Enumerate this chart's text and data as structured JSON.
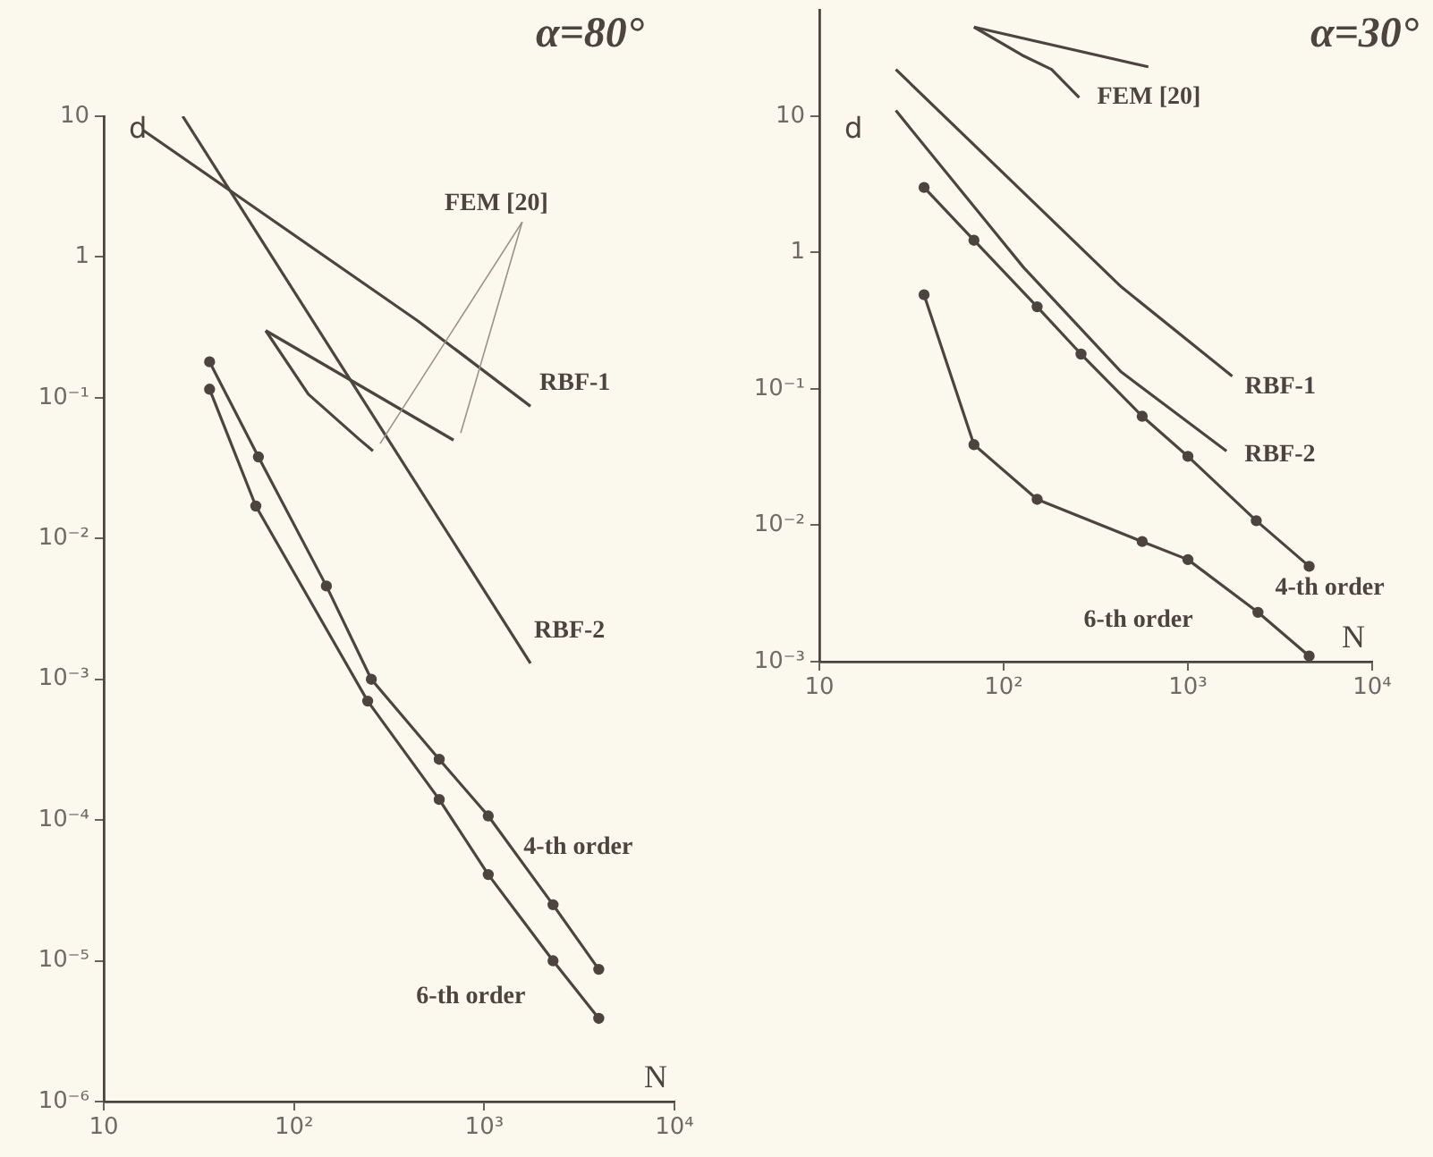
{
  "chart_data": [
    {
      "type": "line",
      "title": "α=80°",
      "xlabel": "N",
      "ylabel": "d",
      "log": "xy",
      "marker": "circle",
      "xlim": [
        10,
        10000
      ],
      "ylim": [
        1e-06,
        10
      ],
      "xticks": [
        {
          "value": 10,
          "label": "10"
        },
        {
          "value": 100,
          "label": "10²"
        },
        {
          "value": 1000,
          "label": "10³"
        },
        {
          "value": 10000,
          "label": "10⁴"
        }
      ],
      "yticks": [
        {
          "value": 1e-06,
          "label": "10⁻⁶"
        },
        {
          "value": 1e-05,
          "label": "10⁻⁵"
        },
        {
          "value": 0.0001,
          "label": "10⁻⁴"
        },
        {
          "value": 0.001,
          "label": "10⁻³"
        },
        {
          "value": 0.01,
          "label": "10⁻²"
        },
        {
          "value": 0.1,
          "label": "10⁻¹"
        },
        {
          "value": 1,
          "label": "1"
        },
        {
          "value": 10,
          "label": "10"
        }
      ],
      "series": [
        {
          "name": "RBF-1",
          "color": "#4d4440",
          "marker": "none",
          "x": [
            16,
            450,
            1750
          ],
          "values": [
            8,
            0.35,
            0.087
          ]
        },
        {
          "name": "RBF-2",
          "color": "#4d4440",
          "marker": "none",
          "x": [
            26,
            1750
          ],
          "values": [
            10,
            0.0013
          ]
        },
        {
          "name": "FEM [20]",
          "color": "#4d4440",
          "marker": "none",
          "x": [
            71,
            119,
            219,
            260
          ],
          "values": [
            0.3,
            0.106,
            0.051,
            0.042
          ]
        },
        {
          "color": "#4d4440",
          "marker": "none",
          "x": [
            71,
            690
          ],
          "values": [
            0.3,
            0.05
          ]
        },
        {
          "name": "4-th order",
          "color": "#4d4440",
          "x": [
            36,
            65,
            148,
            255,
            580,
            1050,
            2300,
            4000
          ],
          "values": [
            0.18,
            0.038,
            0.0046,
            0.001,
            0.00027,
            0.000107,
            2.5e-05,
            8.7e-06
          ]
        },
        {
          "name": "6-th order",
          "color": "#4d4440",
          "x": [
            36,
            63,
            244,
            580,
            1050,
            2300,
            4000
          ],
          "values": [
            0.115,
            0.017,
            0.0007,
            0.00014,
            4.1e-05,
            1e-05,
            3.9e-06
          ]
        }
      ]
    },
    {
      "type": "line",
      "title": "α=30°",
      "xlabel": "N",
      "ylabel": "d",
      "log": "xy",
      "marker": "circle",
      "xlim": [
        10,
        10000
      ],
      "ylim": [
        0.001,
        60
      ],
      "xticks": [
        10,
        {
          "value": 100,
          "label": "10²"
        },
        {
          "value": 1000,
          "label": "10³"
        },
        {
          "value": 10000,
          "label": "10⁴"
        }
      ],
      "yticks": [
        {
          "value": 0.001,
          "label": "10⁻³"
        },
        {
          "value": 0.01,
          "label": "10⁻²"
        },
        {
          "value": 0.1,
          "label": "10⁻¹"
        },
        1,
        10
      ],
      "series": [
        {
          "name": "RBF-1",
          "color": "#4d4440",
          "marker": "none",
          "x": [
            26,
            435,
            1740
          ],
          "values": [
            22,
            0.56,
            0.124
          ]
        },
        {
          "name": "RBF-2",
          "color": "#4d4440",
          "marker": "none",
          "x": [
            26,
            128,
            435,
            1620
          ],
          "values": [
            11,
            0.78,
            0.133,
            0.035
          ]
        },
        {
          "name": "FEM [20]",
          "color": "#4d4440",
          "marker": "none",
          "x": [
            69,
            126,
            182,
            257
          ],
          "values": [
            45,
            28,
            22,
            13.7
          ]
        },
        {
          "color": "#4d4440",
          "marker": "none",
          "x": [
            69,
            610
          ],
          "values": [
            45,
            23
          ]
        },
        {
          "name": "4-th order",
          "color": "#4d4440",
          "x": [
            37,
            69,
            152,
            263,
            565,
            1000,
            2350,
            4550
          ],
          "values": [
            3.0,
            1.23,
            0.4,
            0.18,
            0.063,
            0.032,
            0.0108,
            0.005
          ]
        },
        {
          "name": "6-th order",
          "color": "#4d4440",
          "x": [
            37,
            69,
            152,
            565,
            1000,
            2400,
            4550
          ],
          "values": [
            0.49,
            0.039,
            0.0155,
            0.0076,
            0.0056,
            0.0023,
            0.0011
          ]
        }
      ]
    }
  ]
}
